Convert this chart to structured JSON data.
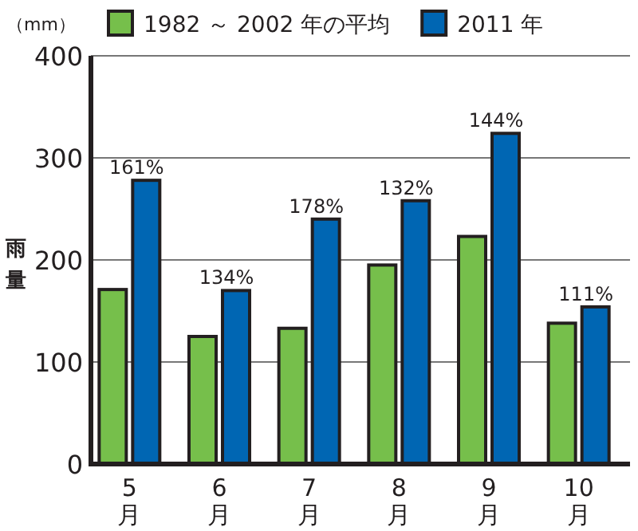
{
  "chart_data": {
    "type": "bar",
    "ylabel": "雨量",
    "annotations": [
      "（mm）",
      {
        "text": "161%",
        "x": "5月",
        "y": 278
      },
      {
        "text": "134%",
        "x": "6月",
        "y": 170
      },
      {
        "text": "178%",
        "x": "7月",
        "y": 240
      },
      {
        "text": "132%",
        "x": "8月",
        "y": 258
      },
      {
        "text": "144%",
        "x": "9月",
        "y": 324
      },
      {
        "text": "111%",
        "x": "10月",
        "y": 154
      }
    ],
    "categories": [
      "5月",
      "6月",
      "7月",
      "8月",
      "9月",
      "10月"
    ],
    "series": [
      {
        "name": "1982 ～ 2002 年の平均",
        "color": "#76bf4b",
        "values": [
          171,
          125,
          133,
          195,
          223,
          138
        ]
      },
      {
        "name": "2011 年",
        "color": "#0066b3",
        "values": [
          278,
          170,
          240,
          258,
          324,
          154
        ]
      }
    ],
    "ylim": [
      0,
      400
    ],
    "yticks": [
      0,
      100,
      200,
      300,
      400
    ],
    "grid": "y",
    "legend": "top"
  }
}
